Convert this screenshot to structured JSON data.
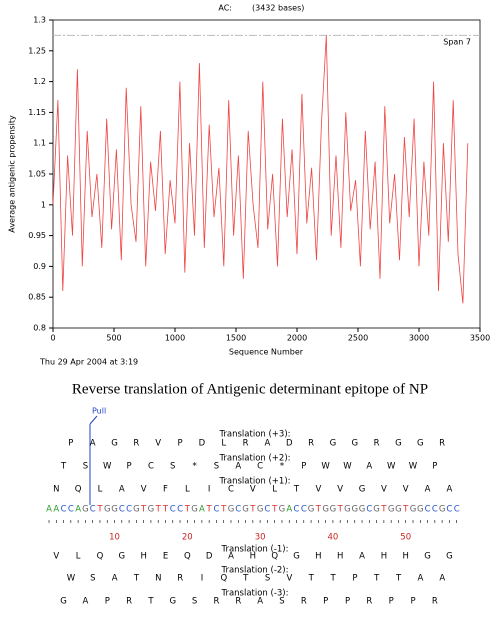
{
  "chart_data": {
    "type": "line",
    "title": "AC:",
    "subtitle": "(3432 bases)",
    "x_label": "Sequence Number",
    "y_label": "Average antigenic propensity",
    "annotation": "Span 7",
    "reference_line": 1.275,
    "date": "Thu 29 Apr 2004 at 3:19",
    "xlim": [
      0,
      3500
    ],
    "xticks": [
      0,
      500,
      1000,
      1500,
      2000,
      2500,
      3000,
      3500
    ],
    "ylim": [
      0.8,
      1.3
    ],
    "yticks": [
      0.8,
      0.85,
      0.9,
      0.95,
      1,
      1.05,
      1.1,
      1.15,
      1.2,
      1.25,
      1.3
    ],
    "color": "#ee4444",
    "x": [
      0,
      40,
      80,
      120,
      160,
      200,
      240,
      280,
      320,
      360,
      400,
      440,
      480,
      520,
      560,
      600,
      640,
      680,
      720,
      760,
      800,
      840,
      880,
      920,
      960,
      1000,
      1040,
      1080,
      1120,
      1160,
      1200,
      1240,
      1280,
      1320,
      1360,
      1400,
      1440,
      1480,
      1520,
      1560,
      1600,
      1640,
      1680,
      1720,
      1760,
      1800,
      1840,
      1880,
      1920,
      1960,
      2000,
      2040,
      2080,
      2120,
      2160,
      2200,
      2240,
      2280,
      2320,
      2360,
      2400,
      2440,
      2480,
      2520,
      2560,
      2600,
      2640,
      2680,
      2720,
      2760,
      2800,
      2840,
      2880,
      2920,
      2960,
      3000,
      3040,
      3080,
      3120,
      3160,
      3200,
      3240,
      3280,
      3320,
      3360,
      3400
    ],
    "values": [
      1.0,
      1.17,
      0.86,
      1.08,
      0.95,
      1.22,
      0.9,
      1.12,
      0.98,
      1.05,
      0.93,
      1.14,
      0.96,
      1.09,
      0.91,
      1.19,
      1.0,
      0.94,
      1.16,
      0.9,
      1.07,
      0.99,
      1.12,
      0.92,
      1.04,
      0.97,
      1.2,
      0.89,
      1.1,
      0.95,
      1.23,
      0.93,
      1.13,
      0.98,
      1.06,
      0.9,
      1.17,
      0.95,
      1.08,
      0.88,
      1.12,
      1.0,
      0.93,
      1.2,
      0.96,
      1.05,
      0.9,
      1.14,
      0.98,
      1.09,
      0.92,
      1.18,
      0.97,
      1.06,
      0.91,
      1.13,
      1.275,
      0.95,
      1.08,
      0.93,
      1.15,
      0.99,
      1.04,
      0.9,
      1.12,
      0.96,
      1.07,
      0.88,
      1.16,
      0.97,
      1.05,
      0.91,
      1.11,
      0.98,
      1.14,
      0.9,
      1.07,
      0.95,
      1.2,
      0.86,
      1.1,
      0.94,
      1.17,
      0.92,
      0.84,
      1.1
    ]
  },
  "translation": {
    "title": "Reverse translation of Antigenic determinant epitope of NP",
    "marker": "Pull",
    "forward": [
      {
        "label": "Translation (+3):",
        "letters": [
          "P",
          "A",
          "G",
          "R",
          "V",
          "P",
          "D",
          "L",
          "R",
          "A",
          "D",
          "R",
          "G",
          "G",
          "R",
          "G",
          "G",
          "R"
        ]
      },
      {
        "label": "Translation (+2):",
        "letters": [
          "T",
          "S",
          "W",
          "P",
          "C",
          "S",
          "*",
          "S",
          "A",
          "C",
          "*",
          "P",
          "W",
          "W",
          "A",
          "W",
          "W",
          "P"
        ]
      },
      {
        "label": "Translation (+1):",
        "letters": [
          "N",
          "Q",
          "L",
          "A",
          "V",
          "F",
          "L",
          "I",
          "C",
          "V",
          "L",
          "T",
          "V",
          "V",
          "G",
          "V",
          "V",
          "A",
          "A"
        ]
      }
    ],
    "dna": [
      "A",
      "A",
      "C",
      "C",
      "A",
      "G",
      "C",
      "T",
      "G",
      "G",
      "C",
      "C",
      "G",
      "T",
      "G",
      "T",
      "T",
      "C",
      "C",
      "T",
      "G",
      "A",
      "T",
      "C",
      "T",
      "G",
      "C",
      "G",
      "T",
      "G",
      "C",
      "T",
      "G",
      "A",
      "C",
      "C",
      "G",
      "T",
      "G",
      "G",
      "T",
      "G",
      "G",
      "G",
      "C",
      "G",
      "T",
      "G",
      "G",
      "T",
      "G",
      "G",
      "C",
      "C",
      "G",
      "C",
      "C"
    ],
    "ruler": [
      10,
      20,
      30,
      40,
      50
    ],
    "reverse": [
      {
        "label": "Translation (-1):",
        "letters": [
          "V",
          "L",
          "Q",
          "G",
          "H",
          "E",
          "Q",
          "D",
          "A",
          "H",
          "Q",
          "G",
          "H",
          "H",
          "A",
          "H",
          "H",
          "G",
          "G"
        ]
      },
      {
        "label": "Translation (-2):",
        "letters": [
          "W",
          "S",
          "A",
          "T",
          "N",
          "R",
          "I",
          "Q",
          "T",
          "S",
          "V",
          "T",
          "T",
          "P",
          "T",
          "T",
          "A",
          "A"
        ]
      },
      {
        "label": "Translation (-3):",
        "letters": [
          "G",
          "A",
          "P",
          "R",
          "T",
          "G",
          "S",
          "R",
          "R",
          "A",
          "S",
          "R",
          "P",
          "P",
          "R",
          "P",
          "P",
          "R"
        ]
      }
    ]
  }
}
